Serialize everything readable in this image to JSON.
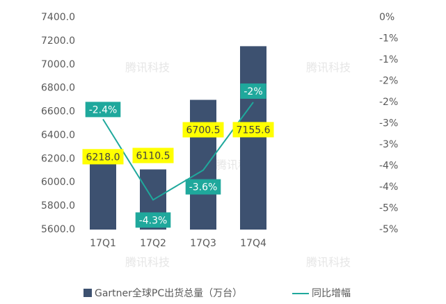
{
  "chart_data": {
    "type": "bar-line",
    "categories": [
      "17Q1",
      "17Q2",
      "17Q3",
      "17Q4"
    ],
    "series": [
      {
        "name": "Gartner全球PC出货总量（万台）",
        "type": "bar",
        "color": "#3d5170",
        "values": [
          6218.0,
          6110.5,
          6700.5,
          7155.6
        ],
        "value_labels": [
          "6218.0",
          "6110.5",
          "6700.5",
          "7155.6"
        ]
      },
      {
        "name": "同比增幅",
        "type": "line",
        "axis": "y2",
        "color": "#1fa89c",
        "values": [
          -2.4,
          -4.3,
          -3.6,
          -2
        ],
        "value_labels": [
          "-2.4%",
          "-4.3%",
          "-3.6%",
          "-2%"
        ]
      }
    ],
    "ylim": [
      5600,
      7400
    ],
    "yticks": [
      {
        "value": 5600,
        "label": "5600.0"
      },
      {
        "value": 5800,
        "label": "5800.0"
      },
      {
        "value": 6000,
        "label": "6000.0"
      },
      {
        "value": 6200,
        "label": "6200.0"
      },
      {
        "value": 6400,
        "label": "6400.0"
      },
      {
        "value": 6600,
        "label": "6600.0"
      },
      {
        "value": 6800,
        "label": "6800.0"
      },
      {
        "value": 7000,
        "label": "7000.0"
      },
      {
        "value": 7200,
        "label": "7200.0"
      },
      {
        "value": 7400,
        "label": "7400.0"
      }
    ],
    "y2lim": [
      -5,
      0
    ],
    "y2ticks": [
      {
        "value": 0,
        "label": "0%"
      },
      {
        "value": -0.5,
        "label": "-1%"
      },
      {
        "value": -1,
        "label": "-1%"
      },
      {
        "value": -1.5,
        "label": "-2%"
      },
      {
        "value": -2,
        "label": "-2%"
      },
      {
        "value": -2.5,
        "label": "-3%"
      },
      {
        "value": -3,
        "label": "-3%"
      },
      {
        "value": -3.5,
        "label": "-4%"
      },
      {
        "value": -4,
        "label": "-4%"
      },
      {
        "value": -4.5,
        "label": "-5%"
      },
      {
        "value": -5,
        "label": "-5%"
      }
    ],
    "legend": "bottom",
    "watermark": "腾讯科技"
  }
}
